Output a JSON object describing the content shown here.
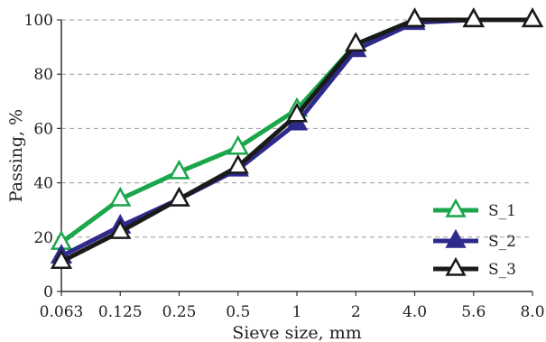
{
  "chart_data": {
    "type": "line",
    "title": "",
    "xlabel": "Sieve size, mm",
    "ylabel": "Passing, %",
    "categories": [
      "0.063",
      "0.125",
      "0.25",
      "0.5",
      "1",
      "2",
      "4.0",
      "5.6",
      "8.0"
    ],
    "ylim": [
      0,
      100
    ],
    "yticks": [
      0,
      20,
      40,
      60,
      80,
      100
    ],
    "grid": "horizontal dashed",
    "legend_position": "bottom-right",
    "series": [
      {
        "name": "S_1",
        "color": "#1aa64a",
        "marker_fill": "#ffffff",
        "values": [
          18,
          34,
          44,
          53,
          67,
          91,
          100,
          100,
          100
        ]
      },
      {
        "name": "S_2",
        "color": "#2e2a8c",
        "marker_fill": "#2e2a8c",
        "values": [
          13,
          24,
          34,
          45,
          62,
          89,
          99,
          100,
          100
        ]
      },
      {
        "name": "S_3",
        "color": "#1a1a1a",
        "marker_fill": "#ffffff",
        "values": [
          11,
          22,
          34,
          46,
          65,
          91,
          100,
          100,
          100
        ]
      }
    ]
  }
}
